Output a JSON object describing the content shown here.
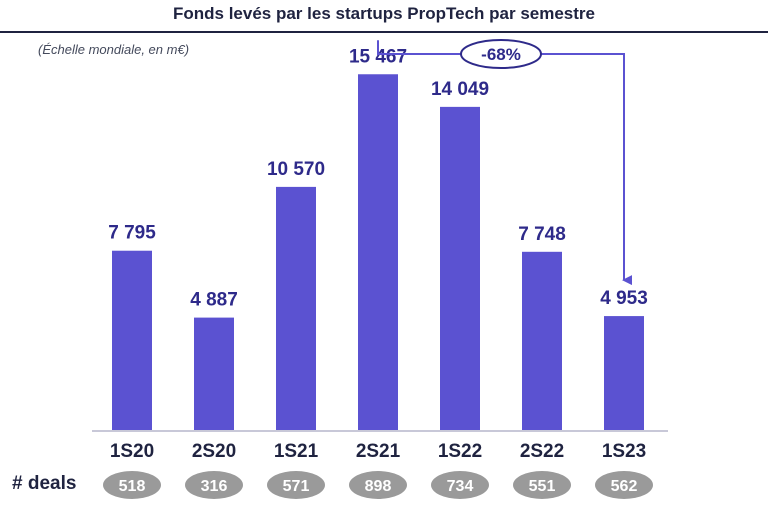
{
  "header": {
    "title": "Fonds levés par les startups PropTech par semestre",
    "subtitle": "(Échelle mondiale, en m€)"
  },
  "deals_label": "# deals",
  "annotation": {
    "label": "-68%"
  },
  "colors": {
    "bar": "#5b52d1",
    "value_label": "#2e2a8a",
    "category_label": "#1f2340",
    "deal_pill": "#9a9a9a",
    "deal_text": "#ffffff",
    "axis": "#c8c8d8"
  },
  "chart_data": {
    "type": "bar",
    "categories": [
      "1S20",
      "2S20",
      "1S21",
      "2S21",
      "1S22",
      "2S22",
      "1S23"
    ],
    "values": [
      7795,
      4887,
      10570,
      15467,
      14049,
      7748,
      4953
    ],
    "value_labels": [
      "7 795",
      "4 887",
      "10 570",
      "15 467",
      "14 049",
      "7 748",
      "4 953"
    ],
    "deals": [
      "518",
      "316",
      "571",
      "898",
      "734",
      "551",
      "562"
    ],
    "ylim": [
      0,
      16000
    ],
    "grid": false,
    "legend": "none",
    "annotation": {
      "text": "-68%",
      "from": "2S21",
      "to": "1S23"
    }
  }
}
